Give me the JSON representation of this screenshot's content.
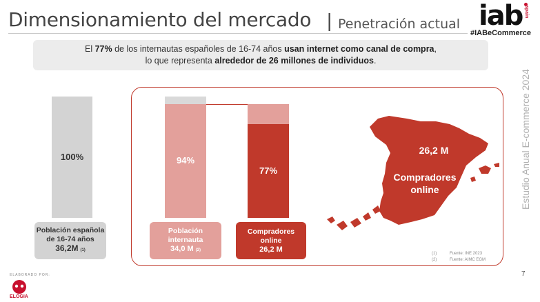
{
  "header": {
    "title": "Dimensionamiento del mercado",
    "separator": "|",
    "subtitle": "Penetración actual",
    "logo": "iab",
    "logo_sub": "spain",
    "hashtag": "#IABeCommerce"
  },
  "info": {
    "line1_pre": "El ",
    "line1_pct": "77%",
    "line1_mid": " de los internautas españoles de 16-74 años ",
    "line1_bold": "usan internet como canal de compra",
    "line1_end": ",",
    "line2_pre": "lo que representa ",
    "line2_bold": "alrededor de 26 millones de individuos",
    "line2_end": "."
  },
  "side_text": "Estudio Anual E-commerce  2024",
  "chart_data": {
    "type": "bar",
    "categories": [
      "Población española de 16-74 años",
      "Población internauta",
      "Compradores online"
    ],
    "values": [
      100,
      94,
      77
    ],
    "value_labels": [
      "100%",
      "94%",
      "77%"
    ],
    "absolute_labels": [
      "36,2M",
      "34,0 M",
      "26,2 M"
    ],
    "footnote_marks": [
      "(1)",
      "(2)",
      ""
    ],
    "ylim": [
      0,
      100
    ],
    "colors": {
      "total": "#d3d3d3",
      "internauta": "#e3a09b",
      "compradores": "#c0392b",
      "remainder": "#d9d9d9"
    },
    "map_value": "26,2 M",
    "map_label": "Compradores online"
  },
  "boxes": {
    "box1_line1": "Población española",
    "box1_line2": "de 16-74 años",
    "box1_value": "36,2M",
    "box1_note": "(1)",
    "box2_line1": "Población",
    "box2_line2": "internauta",
    "box2_value": "34,0 M",
    "box2_note": "(2)",
    "box3_line1": "Compradores",
    "box3_line2": "online",
    "box3_value": "26,2 M"
  },
  "sources": [
    {
      "n": "(1)",
      "text": "Fuente: INE 2023"
    },
    {
      "n": "(2)",
      "text": "Fuente: AIMC EGM"
    }
  ],
  "footer": {
    "elaborated": "ELABORADO POR:",
    "brand": "ELOGIA",
    "page": "7"
  }
}
